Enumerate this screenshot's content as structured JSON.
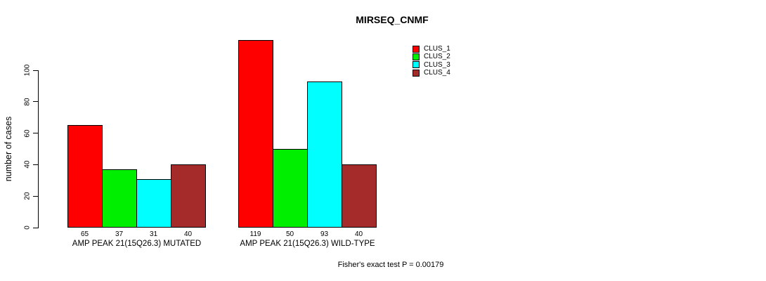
{
  "title": "MIRSEQ_CNMF",
  "footer": "Fisher's exact test P = 0.00179",
  "chart_data": {
    "type": "bar",
    "title": "MIRSEQ_CNMF",
    "xlabel": "",
    "ylabel": "number of cases",
    "yticks": [
      0,
      20,
      40,
      60,
      80,
      100
    ],
    "ylim": [
      0,
      119
    ],
    "grid": false,
    "legend_position": "top-right",
    "bar_value_labels_shown": true,
    "categories": [
      "AMP PEAK 21(15Q26.3) MUTATED",
      "AMP PEAK 21(15Q26.3) WILD-TYPE"
    ],
    "series": [
      {
        "name": "CLUS_1",
        "color": "#FF0000",
        "values": [
          65,
          119
        ]
      },
      {
        "name": "CLUS_2",
        "color": "#00EE00",
        "values": [
          37,
          50
        ]
      },
      {
        "name": "CLUS_3",
        "color": "#00FFFF",
        "values": [
          31,
          93
        ]
      },
      {
        "name": "CLUS_4",
        "color": "#A52A2A",
        "values": [
          40,
          40
        ]
      }
    ]
  }
}
